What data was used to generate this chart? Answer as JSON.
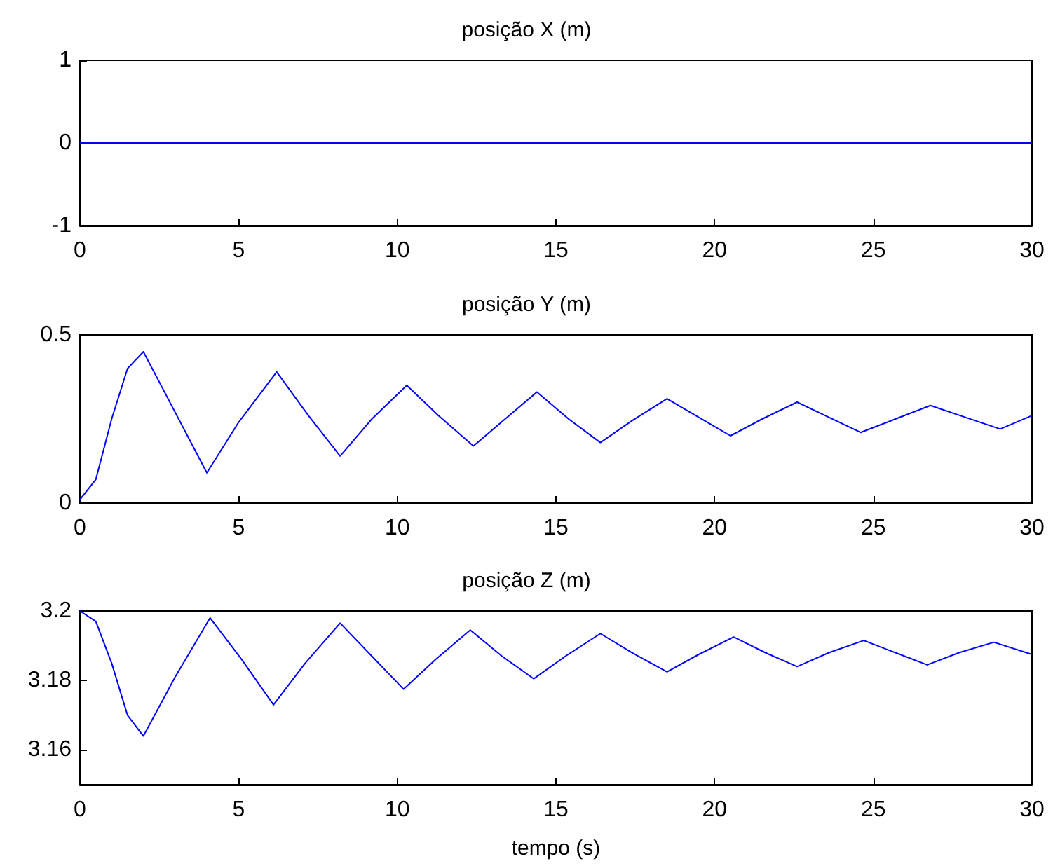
{
  "chart_data": [
    {
      "type": "line",
      "title": "posição X (m)",
      "x": [
        0,
        30
      ],
      "values": [
        0,
        0
      ],
      "color": "#0000ff",
      "xlim": [
        0,
        30
      ],
      "xticks": [
        0,
        5,
        10,
        15,
        20,
        25,
        30
      ],
      "ylim": [
        -1,
        1
      ],
      "yticks": [
        -1,
        0,
        1
      ],
      "grid": false,
      "marker": "none"
    },
    {
      "type": "line",
      "title": "posição Y (m)",
      "x": [
        0,
        0.5,
        1,
        1.5,
        2,
        3,
        4,
        5,
        6.2,
        7.2,
        8.2,
        9.2,
        10.3,
        11.3,
        12.4,
        13.4,
        14.4,
        15.4,
        16.4,
        17.4,
        18.5,
        19.5,
        20.5,
        21.5,
        22.6,
        23.6,
        24.6,
        25.7,
        26.8,
        27.9,
        29,
        30
      ],
      "values": [
        0.01,
        0.07,
        0.25,
        0.4,
        0.45,
        0.27,
        0.09,
        0.24,
        0.39,
        0.26,
        0.14,
        0.25,
        0.35,
        0.26,
        0.17,
        0.25,
        0.33,
        0.25,
        0.18,
        0.245,
        0.31,
        0.255,
        0.2,
        0.25,
        0.3,
        0.255,
        0.21,
        0.25,
        0.29,
        0.255,
        0.22,
        0.26
      ],
      "color": "#0000ff",
      "xlim": [
        0,
        30
      ],
      "xticks": [
        0,
        5,
        10,
        15,
        20,
        25,
        30
      ],
      "ylim": [
        0,
        0.5
      ],
      "yticks": [
        0,
        0.5
      ],
      "grid": false,
      "marker": "none"
    },
    {
      "type": "line",
      "title": "posição Z (m)",
      "xlabel": "tempo (s)",
      "x": [
        0,
        0.5,
        1,
        1.5,
        2,
        3,
        4.1,
        5.1,
        6.1,
        7.1,
        8.2,
        9.2,
        10.2,
        11.2,
        12.3,
        13.3,
        14.3,
        15.3,
        16.4,
        17.4,
        18.5,
        19.5,
        20.6,
        21.6,
        22.6,
        23.6,
        24.7,
        25.7,
        26.7,
        27.7,
        28.8,
        30
      ],
      "values": [
        3.2,
        3.197,
        3.185,
        3.17,
        3.164,
        3.181,
        3.198,
        3.186,
        3.173,
        3.185,
        3.1965,
        3.187,
        3.1775,
        3.186,
        3.1945,
        3.187,
        3.1805,
        3.187,
        3.1935,
        3.188,
        3.1825,
        3.1875,
        3.1925,
        3.188,
        3.184,
        3.188,
        3.1915,
        3.188,
        3.1845,
        3.188,
        3.191,
        3.1875
      ],
      "color": "#0000ff",
      "xlim": [
        0,
        30
      ],
      "xticks": [
        0,
        5,
        10,
        15,
        20,
        25,
        30
      ],
      "ylim": [
        3.15,
        3.2
      ],
      "yticks": [
        3.16,
        3.18,
        3.2
      ],
      "grid": false,
      "marker": "none"
    }
  ]
}
